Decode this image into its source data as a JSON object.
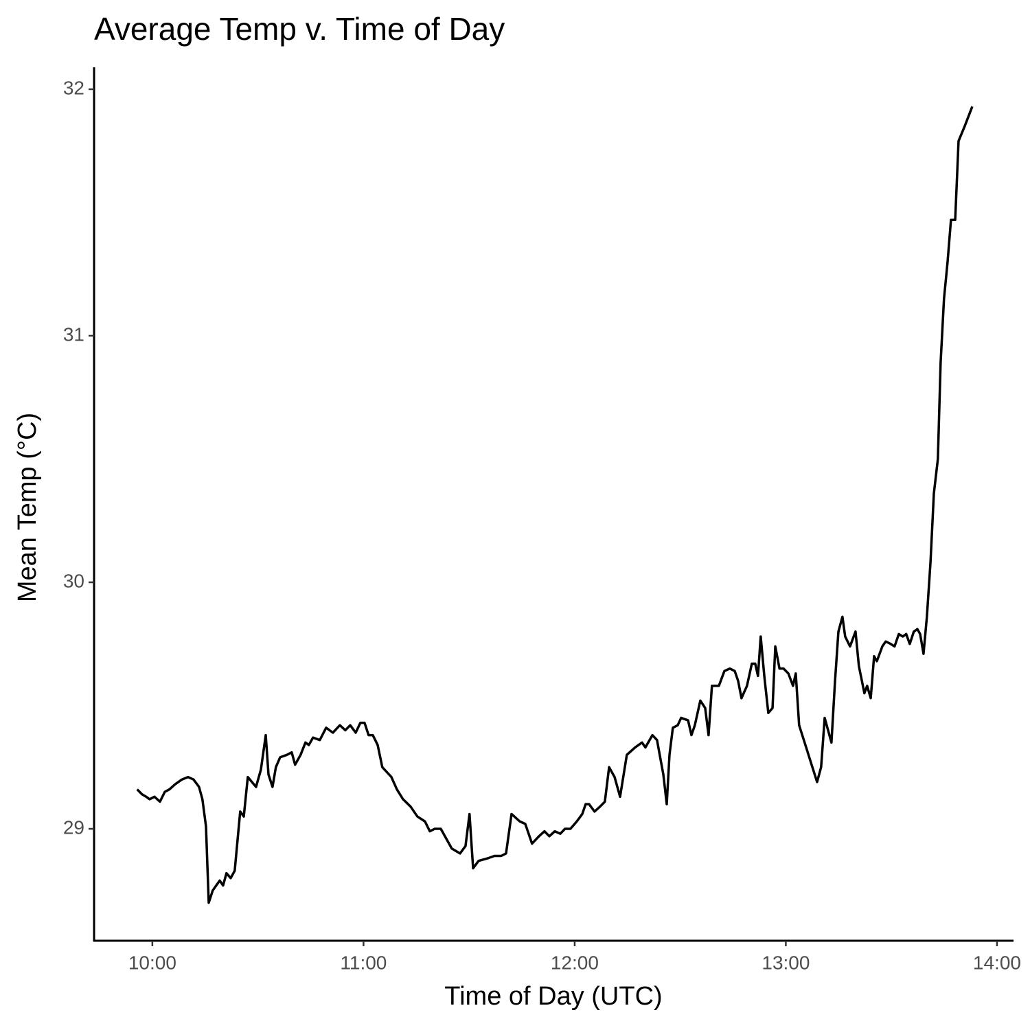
{
  "chart_data": {
    "type": "line",
    "title": "Average Temp v. Time of Day",
    "x_label": "Time of Day (UTC)",
    "y_label": "Mean Temp (°C)",
    "xlim": [
      9.724,
      14.075
    ],
    "ylim": [
      28.546,
      32.089
    ],
    "xticks": [
      {
        "value": 10,
        "label": "10:00"
      },
      {
        "value": 11,
        "label": "11:00"
      },
      {
        "value": 12,
        "label": "12:00"
      },
      {
        "value": 13,
        "label": "13:00"
      },
      {
        "value": 14,
        "label": "14:00"
      }
    ],
    "yticks": [
      29,
      30,
      31,
      32
    ],
    "grid": false,
    "color": "#000000",
    "x": [
      9.928,
      9.951,
      9.971,
      9.987,
      10.01,
      10.036,
      10.059,
      10.081,
      10.107,
      10.14,
      10.169,
      10.195,
      10.221,
      10.237,
      10.254,
      10.267,
      10.286,
      10.319,
      10.335,
      10.351,
      10.371,
      10.39,
      10.416,
      10.433,
      10.452,
      10.491,
      10.514,
      10.537,
      10.55,
      10.569,
      10.585,
      10.605,
      10.637,
      10.66,
      10.676,
      10.702,
      10.725,
      10.741,
      10.761,
      10.793,
      10.823,
      10.855,
      10.888,
      10.914,
      10.937,
      10.963,
      10.985,
      11.005,
      11.024,
      11.044,
      11.067,
      11.089,
      11.132,
      11.158,
      11.187,
      11.223,
      11.255,
      11.291,
      11.314,
      11.337,
      11.366,
      11.392,
      11.418,
      11.457,
      11.483,
      11.502,
      11.519,
      11.545,
      11.587,
      11.62,
      11.652,
      11.675,
      11.701,
      11.74,
      11.766,
      11.798,
      11.831,
      11.857,
      11.88,
      11.906,
      11.932,
      11.954,
      11.98,
      12.01,
      12.036,
      12.052,
      12.068,
      12.094,
      12.12,
      12.143,
      12.163,
      12.189,
      12.215,
      12.247,
      12.286,
      12.319,
      12.335,
      12.368,
      12.39,
      12.407,
      12.42,
      12.436,
      12.449,
      12.465,
      12.488,
      12.504,
      12.537,
      12.553,
      12.569,
      12.595,
      12.618,
      12.634,
      12.65,
      12.683,
      12.709,
      12.735,
      12.758,
      12.774,
      12.79,
      12.816,
      12.839,
      12.855,
      12.868,
      12.881,
      12.898,
      12.917,
      12.937,
      12.95,
      12.97,
      12.989,
      13.012,
      13.034,
      13.047,
      13.063,
      13.089,
      13.122,
      13.148,
      13.167,
      13.184,
      13.216,
      13.233,
      13.249,
      13.268,
      13.281,
      13.304,
      13.33,
      13.346,
      13.372,
      13.385,
      13.402,
      13.418,
      13.431,
      13.457,
      13.473,
      13.496,
      13.515,
      13.535,
      13.554,
      13.57,
      13.587,
      13.606,
      13.623,
      13.636,
      13.652,
      13.668,
      13.685,
      13.701,
      13.72,
      13.733,
      13.749,
      13.766,
      13.782,
      13.802,
      13.818,
      13.847,
      13.883
    ],
    "values": [
      29.16,
      29.14,
      29.13,
      29.12,
      29.13,
      29.11,
      29.15,
      29.16,
      29.18,
      29.2,
      29.21,
      29.2,
      29.17,
      29.12,
      29.01,
      28.7,
      28.75,
      28.79,
      28.77,
      28.82,
      28.8,
      28.83,
      29.07,
      29.05,
      29.21,
      29.17,
      29.24,
      29.38,
      29.22,
      29.17,
      29.25,
      29.29,
      29.3,
      29.31,
      29.26,
      29.3,
      29.35,
      29.34,
      29.37,
      29.36,
      29.41,
      29.39,
      29.42,
      29.4,
      29.42,
      29.39,
      29.43,
      29.43,
      29.38,
      29.38,
      29.34,
      29.25,
      29.21,
      29.16,
      29.12,
      29.09,
      29.05,
      29.03,
      28.99,
      29.0,
      29.0,
      28.96,
      28.92,
      28.9,
      28.93,
      29.06,
      28.84,
      28.87,
      28.88,
      28.89,
      28.89,
      28.9,
      29.06,
      29.03,
      29.02,
      28.94,
      28.97,
      28.99,
      28.97,
      28.99,
      28.98,
      29.0,
      29.0,
      29.03,
      29.06,
      29.1,
      29.1,
      29.07,
      29.09,
      29.11,
      29.25,
      29.21,
      29.13,
      29.3,
      29.33,
      29.35,
      29.33,
      29.38,
      29.36,
      29.28,
      29.22,
      29.1,
      29.3,
      29.41,
      29.42,
      29.45,
      29.44,
      29.38,
      29.42,
      29.52,
      29.49,
      29.38,
      29.58,
      29.58,
      29.64,
      29.65,
      29.64,
      29.6,
      29.53,
      29.58,
      29.67,
      29.67,
      29.62,
      29.78,
      29.62,
      29.47,
      29.49,
      29.74,
      29.65,
      29.65,
      29.63,
      29.58,
      29.63,
      29.42,
      29.35,
      29.26,
      29.19,
      29.25,
      29.45,
      29.35,
      29.6,
      29.8,
      29.86,
      29.78,
      29.74,
      29.8,
      29.66,
      29.55,
      29.58,
      29.53,
      29.7,
      29.68,
      29.74,
      29.76,
      29.75,
      29.74,
      29.79,
      29.78,
      29.79,
      29.75,
      29.8,
      29.81,
      29.79,
      29.71,
      29.86,
      30.08,
      30.36,
      30.5,
      30.89,
      31.15,
      31.3,
      31.47,
      31.47,
      31.79,
      31.85,
      31.93
    ]
  }
}
